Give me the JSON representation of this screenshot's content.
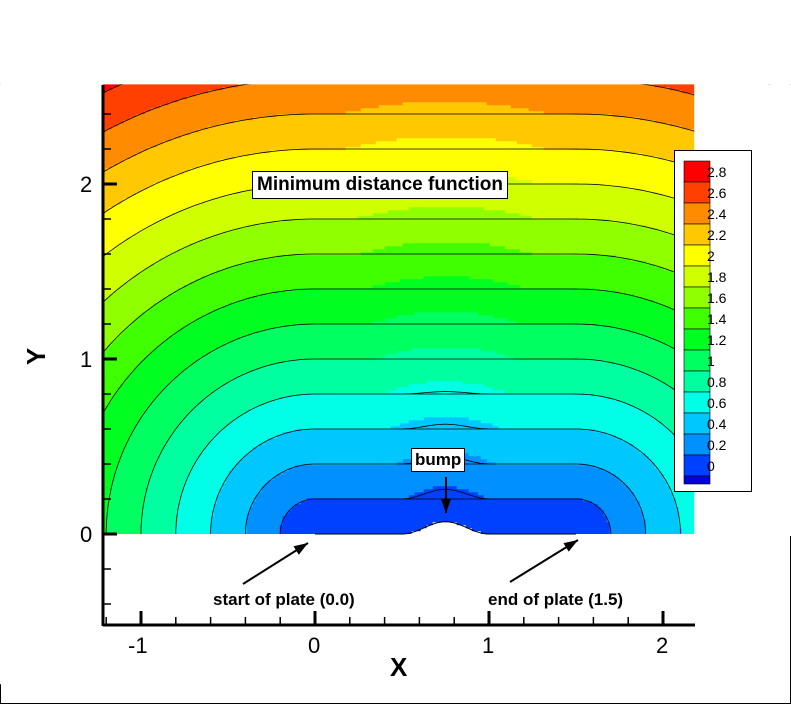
{
  "chart_data": {
    "type": "heatmap",
    "subtype": "filled-contour",
    "title": "Minimum distance function",
    "xlabel": "X",
    "ylabel": "Y",
    "xlim": [
      -1.22,
      2.18
    ],
    "ylim": [
      -0.52,
      2.57
    ],
    "field_domain": {
      "x": [
        -1.22,
        2.18
      ],
      "y": [
        0,
        2.57
      ]
    },
    "xticks": [
      -1,
      0,
      1,
      2
    ],
    "xtick_labels": [
      "-1",
      "0",
      "1",
      "2"
    ],
    "yticks": [
      0,
      1,
      2
    ],
    "ytick_labels": [
      "0",
      "1",
      "2"
    ],
    "minor_tick_step": 0.2,
    "contour_levels": [
      0,
      0.2,
      0.4,
      0.6,
      0.8,
      1,
      1.2,
      1.4,
      1.6,
      1.8,
      2,
      2.2,
      2.4,
      2.6,
      2.8
    ],
    "legend_labels": [
      "2.8",
      "2.6",
      "2.4",
      "2.2",
      "2",
      "1.8",
      "1.6",
      "1.4",
      "1.2",
      "1",
      "0.8",
      "0.6",
      "0.4",
      "0.2",
      "0"
    ],
    "colors": [
      "#0000e0",
      "#0040ff",
      "#0090ff",
      "#00c8ff",
      "#00ffe6",
      "#00ffa0",
      "#00ff60",
      "#00ff20",
      "#40ff00",
      "#90ff00",
      "#d0ff00",
      "#ffff00",
      "#ffc800",
      "#ff8c00",
      "#ff4000",
      "#ff0000"
    ],
    "plate": {
      "x_start": 0.0,
      "x_end": 1.5,
      "y": 0.0
    },
    "bump": {
      "x_center": 0.75,
      "height": 0.07,
      "half_width": 0.25
    },
    "annotations": [
      {
        "text": "bump",
        "arrow_to": [
          0.75,
          0.1
        ]
      },
      {
        "text": "start of plate (0.0)",
        "arrow_to": [
          0.0,
          -0.05
        ]
      },
      {
        "text": "end of plate (1.5)",
        "arrow_to": [
          1.5,
          -0.05
        ]
      }
    ],
    "legend_position": "right"
  },
  "labels": {
    "title": "Minimum distance function",
    "bump": "bump",
    "start": "start of plate (0.0)",
    "end": "end of plate (1.5)",
    "xaxis": "X",
    "yaxis": "Y",
    "xt": [
      "-1",
      "0",
      "1",
      "2"
    ],
    "yt": [
      "0",
      "1",
      "2"
    ],
    "legend": [
      "2.8",
      "2.6",
      "2.4",
      "2.2",
      "2",
      "1.8",
      "1.6",
      "1.4",
      "1.2",
      "1",
      "0.8",
      "0.6",
      "0.4",
      "0.2",
      "0"
    ]
  }
}
